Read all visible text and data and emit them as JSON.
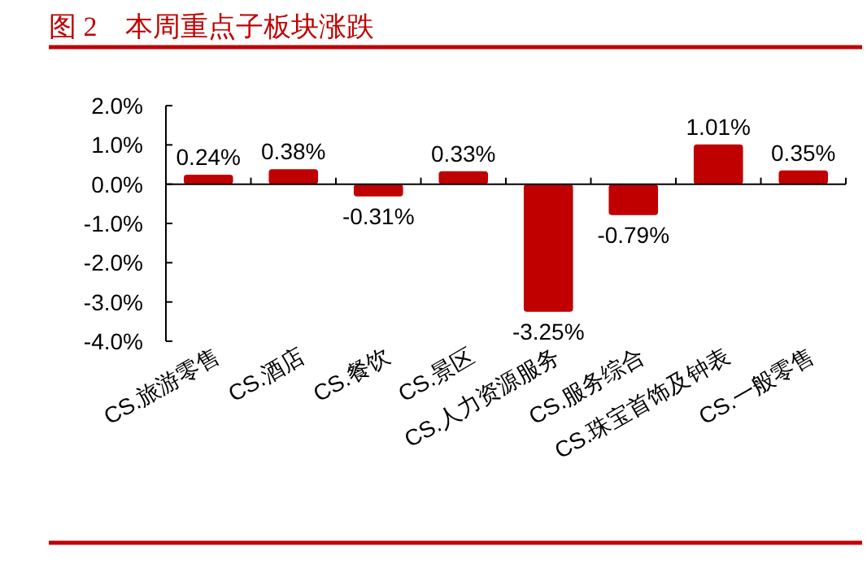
{
  "chart_data": {
    "type": "bar",
    "title": "图 2　本周重点子板块涨跌",
    "categories": [
      "CS.旅游零售",
      "CS.酒店",
      "CS.餐饮",
      "CS.景区",
      "CS.人力资源服务",
      "CS.服务综合",
      "CS.珠宝首饰及钟表",
      "CS.一般零售"
    ],
    "values": [
      0.24,
      0.38,
      -0.31,
      0.33,
      -3.25,
      -0.79,
      1.01,
      0.35
    ],
    "value_labels": [
      "0.24%",
      "0.38%",
      "-0.31%",
      "0.33%",
      "-3.25%",
      "-0.79%",
      "1.01%",
      "0.35%"
    ],
    "color": "#c00000",
    "ylim": [
      -4,
      2
    ],
    "yticks": [
      {
        "value": -4,
        "label": "-4.0%"
      },
      {
        "value": -3,
        "label": "-3.0%"
      },
      {
        "value": -2,
        "label": "-2.0%"
      },
      {
        "value": -1,
        "label": "-1.0%"
      },
      {
        "value": 0,
        "label": "0.0%"
      },
      {
        "value": 1,
        "label": "1.0%"
      },
      {
        "value": 2,
        "label": "2.0%"
      }
    ]
  }
}
